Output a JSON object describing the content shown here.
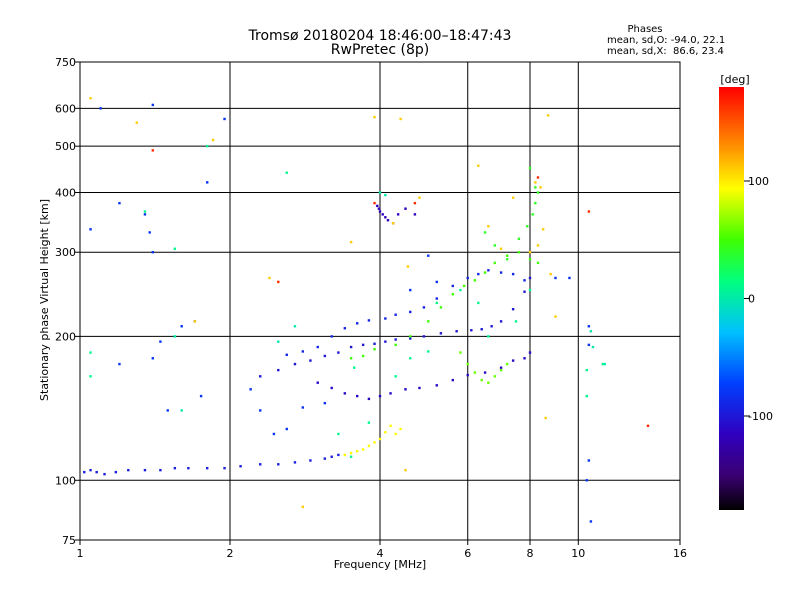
{
  "chart_data": {
    "type": "scatter",
    "title": "Tromsø 20180204 18:46:00–18:47:43",
    "subtitle": "RwPretec (8p)",
    "stats": {
      "heading": "Phases",
      "line1": "mean, sd,O: -94.0, 22.1",
      "line2": "mean, sd,X:  86.6, 23.4"
    },
    "xlabel": "Frequency [MHz]",
    "ylabel": "Stationary phase Virtual Height [km]",
    "x_scale": "log",
    "y_scale": "log",
    "xlim": [
      1,
      16
    ],
    "ylim": [
      75,
      750
    ],
    "x_ticks": [
      1,
      2,
      4,
      6,
      8,
      10,
      16
    ],
    "y_ticks": [
      75,
      100,
      200,
      300,
      400,
      500,
      600,
      750
    ],
    "x_grid": [
      2,
      4,
      6,
      8,
      10
    ],
    "y_grid": [
      100,
      200,
      300,
      400,
      500,
      600
    ],
    "grid": true,
    "colorbar": {
      "label": "[deg]",
      "range": [
        -180,
        180
      ],
      "ticks": [
        100,
        0,
        -100
      ],
      "colormap": "rainbow"
    },
    "series": [
      {
        "phase_deg": -95,
        "points": [
          [
            1.02,
            104
          ],
          [
            1.05,
            105
          ],
          [
            1.08,
            104
          ],
          [
            1.12,
            103
          ],
          [
            1.18,
            104
          ],
          [
            1.25,
            105
          ],
          [
            1.35,
            105
          ],
          [
            1.45,
            105
          ],
          [
            1.55,
            106
          ],
          [
            1.65,
            106
          ],
          [
            1.8,
            106
          ],
          [
            1.95,
            106
          ],
          [
            2.1,
            107
          ],
          [
            2.3,
            108
          ],
          [
            2.5,
            108
          ],
          [
            2.7,
            109
          ],
          [
            2.9,
            110
          ],
          [
            3.1,
            111
          ],
          [
            3.2,
            112
          ],
          [
            3.3,
            113
          ]
        ]
      },
      {
        "phase_deg": 95,
        "points": [
          [
            3.4,
            113
          ],
          [
            3.5,
            114
          ],
          [
            3.6,
            115
          ],
          [
            3.7,
            116
          ],
          [
            3.8,
            118
          ],
          [
            3.9,
            120
          ],
          [
            4.0,
            122
          ],
          [
            4.1,
            126
          ],
          [
            4.2,
            130
          ],
          [
            4.3,
            125
          ],
          [
            4.4,
            128
          ]
        ]
      },
      {
        "phase_deg": -100,
        "points": [
          [
            2.3,
            165
          ],
          [
            2.5,
            170
          ],
          [
            2.7,
            175
          ],
          [
            2.9,
            178
          ],
          [
            3.1,
            182
          ],
          [
            3.3,
            185
          ],
          [
            3.5,
            190
          ],
          [
            3.7,
            192
          ],
          [
            3.9,
            193
          ],
          [
            4.1,
            195
          ],
          [
            4.3,
            197
          ],
          [
            4.6,
            198
          ],
          [
            4.9,
            200
          ],
          [
            5.3,
            203
          ],
          [
            5.7,
            205
          ],
          [
            6.1,
            206
          ],
          [
            6.4,
            207
          ],
          [
            6.7,
            210
          ],
          [
            7.0,
            215
          ],
          [
            7.4,
            228
          ],
          [
            7.8,
            248
          ],
          [
            8.0,
            265
          ]
        ]
      },
      {
        "phase_deg": -90,
        "points": [
          [
            2.6,
            183
          ],
          [
            2.8,
            186
          ],
          [
            3.0,
            190
          ],
          [
            3.2,
            200
          ],
          [
            3.4,
            208
          ],
          [
            3.6,
            213
          ],
          [
            3.8,
            216
          ],
          [
            4.1,
            218
          ],
          [
            4.3,
            222
          ],
          [
            4.6,
            225
          ],
          [
            4.9,
            230
          ],
          [
            5.2,
            240
          ],
          [
            5.6,
            255
          ],
          [
            6.0,
            265
          ],
          [
            6.3,
            270
          ],
          [
            6.6,
            275
          ],
          [
            7.0,
            272
          ],
          [
            7.4,
            270
          ],
          [
            7.8,
            262
          ]
        ]
      },
      {
        "phase_deg": -110,
        "points": [
          [
            3.0,
            160
          ],
          [
            3.2,
            156
          ],
          [
            3.4,
            152
          ],
          [
            3.6,
            150
          ],
          [
            3.8,
            148
          ],
          [
            4.0,
            150
          ],
          [
            4.2,
            152
          ],
          [
            4.5,
            155
          ],
          [
            4.8,
            156
          ],
          [
            5.2,
            158
          ],
          [
            5.6,
            162
          ],
          [
            6.0,
            166
          ],
          [
            6.5,
            168
          ],
          [
            7.0,
            172
          ],
          [
            7.4,
            178
          ],
          [
            7.8,
            180
          ],
          [
            8.0,
            185
          ]
        ]
      },
      {
        "phase_deg": 50,
        "points": [
          [
            3.5,
            180
          ],
          [
            3.7,
            182
          ],
          [
            3.9,
            188
          ],
          [
            4.3,
            192
          ],
          [
            4.6,
            200
          ],
          [
            5.0,
            215
          ],
          [
            5.3,
            230
          ],
          [
            5.6,
            245
          ],
          [
            5.9,
            255
          ],
          [
            6.2,
            262
          ],
          [
            6.5,
            272
          ],
          [
            6.8,
            285
          ],
          [
            7.2,
            295
          ],
          [
            7.6,
            300
          ],
          [
            8.0,
            290
          ],
          [
            8.3,
            285
          ]
        ]
      },
      {
        "phase_deg": 60,
        "points": [
          [
            5.8,
            185
          ],
          [
            6.0,
            175
          ],
          [
            6.2,
            168
          ],
          [
            6.4,
            162
          ],
          [
            6.6,
            160
          ],
          [
            6.8,
            165
          ],
          [
            7.0,
            170
          ],
          [
            7.2,
            175
          ]
        ]
      },
      {
        "phase_deg": -115,
        "points": [
          [
            3.95,
            375
          ],
          [
            3.98,
            370
          ],
          [
            4.0,
            365
          ],
          [
            4.05,
            360
          ],
          [
            4.1,
            355
          ],
          [
            4.15,
            350
          ],
          [
            4.25,
            345
          ],
          [
            4.35,
            360
          ],
          [
            4.5,
            370
          ],
          [
            4.7,
            360
          ]
        ]
      },
      {
        "phase_deg": 40,
        "points": [
          [
            6.5,
            330
          ],
          [
            6.8,
            310
          ],
          [
            7.2,
            290
          ],
          [
            7.6,
            320
          ],
          [
            7.9,
            340
          ],
          [
            8.1,
            360
          ],
          [
            8.2,
            380
          ],
          [
            8.3,
            400
          ],
          [
            8.2,
            410
          ],
          [
            8.0,
            450
          ]
        ]
      },
      {
        "phase_deg": -80,
        "points": [
          [
            1.05,
            335
          ],
          [
            1.2,
            380
          ],
          [
            1.35,
            360
          ],
          [
            1.38,
            330
          ],
          [
            1.4,
            300
          ],
          [
            1.45,
            195
          ],
          [
            1.6,
            210
          ],
          [
            1.7,
            215
          ],
          [
            1.8,
            420
          ],
          [
            1.95,
            570
          ],
          [
            1.4,
            610
          ],
          [
            1.1,
            600
          ],
          [
            1.4,
            180
          ],
          [
            1.2,
            175
          ],
          [
            1.5,
            140
          ],
          [
            1.75,
            150
          ],
          [
            2.2,
            155
          ],
          [
            2.3,
            140
          ],
          [
            2.45,
            125
          ],
          [
            2.6,
            128
          ],
          [
            2.8,
            142
          ],
          [
            3.1,
            145
          ],
          [
            4.6,
            250
          ],
          [
            5.0,
            295
          ],
          [
            5.2,
            260
          ],
          [
            10.5,
            110
          ],
          [
            10.4,
            100
          ],
          [
            10.6,
            82
          ],
          [
            10.5,
            210
          ],
          [
            10.5,
            192
          ],
          [
            9.6,
            265
          ],
          [
            9.0,
            265
          ]
        ]
      },
      {
        "phase_deg": 10,
        "points": [
          [
            1.05,
            185
          ],
          [
            1.05,
            165
          ],
          [
            1.35,
            365
          ],
          [
            1.55,
            305
          ],
          [
            1.8,
            500
          ],
          [
            2.6,
            440
          ],
          [
            3.3,
            125
          ],
          [
            3.5,
            112
          ],
          [
            3.8,
            132
          ],
          [
            4.3,
            165
          ],
          [
            5.2,
            235
          ],
          [
            5.8,
            250
          ],
          [
            6.3,
            235
          ],
          [
            6.6,
            200
          ],
          [
            7.5,
            215
          ],
          [
            8.0,
            250
          ],
          [
            10.4,
            170
          ],
          [
            10.4,
            150
          ],
          [
            11.2,
            175
          ],
          [
            3.55,
            172
          ],
          [
            4.6,
            180
          ],
          [
            5.0,
            186
          ]
        ]
      },
      {
        "phase_deg": 110,
        "points": [
          [
            1.05,
            630
          ],
          [
            1.3,
            560
          ],
          [
            1.85,
            515
          ],
          [
            3.9,
            575
          ],
          [
            4.4,
            570
          ],
          [
            8.7,
            580
          ],
          [
            1.7,
            215
          ],
          [
            2.4,
            265
          ],
          [
            2.8,
            88
          ],
          [
            3.5,
            315
          ],
          [
            4.25,
            345
          ],
          [
            4.55,
            280
          ],
          [
            4.8,
            390
          ],
          [
            6.3,
            455
          ],
          [
            7.4,
            390
          ],
          [
            8.2,
            420
          ],
          [
            8.4,
            410
          ],
          [
            8.5,
            335
          ],
          [
            8.3,
            310
          ],
          [
            8.8,
            270
          ],
          [
            6.6,
            340
          ],
          [
            7.0,
            305
          ],
          [
            8.0,
            300
          ],
          [
            9.0,
            220
          ],
          [
            8.6,
            135
          ],
          [
            4.5,
            105
          ]
        ]
      },
      {
        "phase_deg": 165,
        "points": [
          [
            1.4,
            490
          ],
          [
            2.5,
            260
          ],
          [
            3.9,
            380
          ],
          [
            4.7,
            380
          ],
          [
            10.5,
            365
          ],
          [
            13.8,
            130
          ],
          [
            8.3,
            430
          ]
        ]
      },
      {
        "phase_deg": 0,
        "points": [
          [
            1.55,
            200
          ],
          [
            1.6,
            140
          ],
          [
            2.5,
            195
          ],
          [
            2.7,
            210
          ],
          [
            10.6,
            205
          ],
          [
            10.7,
            190
          ],
          [
            11.3,
            175
          ],
          [
            4.0,
            400
          ],
          [
            4.1,
            395
          ]
        ]
      }
    ]
  }
}
